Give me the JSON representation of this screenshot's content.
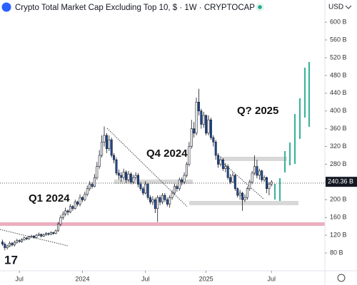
{
  "chart_data": {
    "type": "candlestick",
    "title": "Crypto Total Market Cap Excluding Top 10, $ · 1W · CRYPTOCAP",
    "currency": "USD",
    "annotations": [
      "Q1 2024",
      "Q4 2024",
      "Q? 2025"
    ],
    "up_color": "#ffffff",
    "down_color": "#1f4fa0",
    "xlim": [
      0,
      134
    ],
    "ylim": [
      40,
      650
    ],
    "xticks": [
      {
        "value": 8,
        "label": "Jul"
      },
      {
        "value": 34,
        "label": "2024"
      },
      {
        "value": 60,
        "label": "Jul"
      },
      {
        "value": 85,
        "label": "2025"
      },
      {
        "value": 112,
        "label": "Jul"
      }
    ],
    "yticks": [
      {
        "value": 80,
        "label": "80 B"
      },
      {
        "value": 120,
        "label": "120 B"
      },
      {
        "value": 160,
        "label": "160 B"
      },
      {
        "value": 200,
        "label": "200 B"
      },
      {
        "value": 240,
        "label": "240 B"
      },
      {
        "value": 280,
        "label": "280 B"
      },
      {
        "value": 320,
        "label": "320 B"
      },
      {
        "value": 360,
        "label": "360 B"
      },
      {
        "value": 400,
        "label": "400 B"
      },
      {
        "value": 440,
        "label": "440 B"
      },
      {
        "value": 480,
        "label": "480 B"
      },
      {
        "value": 520,
        "label": "520 B"
      },
      {
        "value": 560,
        "label": "560 B"
      },
      {
        "value": 600,
        "label": "600 B"
      }
    ],
    "last_price": {
      "value": 240.36,
      "label": "240.36 B"
    },
    "x": [
      1,
      2,
      3,
      4,
      5,
      6,
      7,
      8,
      9,
      10,
      11,
      12,
      13,
      14,
      15,
      16,
      17,
      18,
      19,
      20,
      21,
      22,
      23,
      24,
      25,
      26,
      27,
      28,
      29,
      30,
      31,
      32,
      33,
      34,
      35,
      36,
      37,
      38,
      39,
      40,
      41,
      42,
      43,
      44,
      45,
      46,
      47,
      48,
      49,
      50,
      51,
      52,
      53,
      54,
      55,
      56,
      57,
      58,
      59,
      60,
      61,
      62,
      63,
      64,
      65,
      66,
      67,
      68,
      69,
      70,
      71,
      72,
      73,
      74,
      75,
      76,
      77,
      78,
      79,
      80,
      81,
      82,
      83,
      84,
      85,
      86,
      87,
      88,
      89,
      90,
      91,
      92,
      93,
      94,
      95,
      96,
      97,
      98,
      99,
      100,
      101,
      102,
      103,
      104,
      105,
      106,
      107,
      108,
      109,
      110,
      111,
      112
    ],
    "open": [
      105,
      100,
      92,
      96,
      102,
      98,
      104,
      108,
      106,
      110,
      114,
      112,
      116,
      118,
      115,
      120,
      122,
      118,
      121,
      124,
      122,
      126,
      124,
      130,
      145,
      160,
      168,
      175,
      172,
      185,
      180,
      195,
      190,
      205,
      200,
      212,
      225,
      235,
      230,
      250,
      275,
      300,
      330,
      345,
      315,
      335,
      300,
      290,
      260,
      255,
      250,
      262,
      245,
      258,
      240,
      250,
      255,
      235,
      225,
      215,
      235,
      205,
      195,
      200,
      180,
      205,
      195,
      210,
      200,
      190,
      205,
      215,
      230,
      225,
      245,
      240,
      255,
      280,
      320,
      360,
      350,
      420,
      400,
      370,
      390,
      350,
      380,
      340,
      330,
      300,
      280,
      290,
      270,
      275,
      250,
      240,
      255,
      225,
      210,
      215,
      200,
      205,
      225,
      240,
      260,
      275,
      255,
      265,
      245,
      250,
      225,
      235
    ],
    "high": [
      110,
      104,
      99,
      106,
      105,
      108,
      112,
      111,
      113,
      117,
      116,
      119,
      121,
      120,
      123,
      126,
      124,
      124,
      127,
      126,
      129,
      128,
      133,
      150,
      165,
      174,
      182,
      178,
      190,
      188,
      200,
      198,
      212,
      208,
      218,
      232,
      242,
      240,
      258,
      285,
      312,
      345,
      365,
      350,
      345,
      340,
      305,
      295,
      268,
      262,
      270,
      266,
      265,
      262,
      256,
      262,
      260,
      240,
      230,
      242,
      238,
      210,
      208,
      205,
      210,
      210,
      215,
      215,
      205,
      210,
      222,
      236,
      235,
      250,
      250,
      262,
      285,
      330,
      380,
      375,
      430,
      450,
      405,
      398,
      392,
      390,
      385,
      345,
      335,
      305,
      298,
      294,
      282,
      280,
      258,
      262,
      258,
      228,
      222,
      218,
      212,
      230,
      245,
      265,
      300,
      290,
      270,
      268,
      255,
      252,
      240,
      244
    ],
    "low": [
      96,
      86,
      88,
      93,
      95,
      95,
      101,
      103,
      103,
      108,
      109,
      110,
      114,
      112,
      113,
      118,
      115,
      116,
      119,
      119,
      120,
      121,
      122,
      128,
      140,
      155,
      163,
      165,
      170,
      175,
      178,
      185,
      185,
      195,
      197,
      208,
      220,
      225,
      228,
      245,
      270,
      295,
      320,
      305,
      310,
      295,
      282,
      255,
      245,
      240,
      245,
      238,
      240,
      235,
      235,
      245,
      228,
      220,
      210,
      212,
      200,
      190,
      188,
      170,
      150,
      188,
      190,
      195,
      185,
      182,
      200,
      210,
      218,
      220,
      232,
      235,
      250,
      275,
      315,
      340,
      345,
      390,
      360,
      362,
      345,
      345,
      335,
      320,
      290,
      272,
      275,
      265,
      262,
      245,
      235,
      238,
      220,
      205,
      200,
      175,
      195,
      200,
      220,
      235,
      255,
      248,
      245,
      240,
      240,
      215,
      210,
      230
    ],
    "close": [
      100,
      92,
      96,
      102,
      98,
      104,
      108,
      106,
      110,
      114,
      112,
      116,
      118,
      115,
      120,
      122,
      118,
      121,
      124,
      122,
      126,
      124,
      130,
      145,
      160,
      168,
      175,
      172,
      185,
      180,
      195,
      190,
      205,
      200,
      212,
      225,
      235,
      230,
      250,
      275,
      300,
      330,
      345,
      315,
      335,
      300,
      290,
      260,
      255,
      250,
      262,
      245,
      258,
      240,
      250,
      255,
      235,
      225,
      215,
      235,
      205,
      195,
      200,
      180,
      205,
      195,
      210,
      200,
      190,
      205,
      215,
      230,
      225,
      245,
      240,
      255,
      280,
      320,
      360,
      350,
      420,
      400,
      370,
      390,
      350,
      380,
      340,
      330,
      300,
      280,
      290,
      270,
      275,
      250,
      240,
      255,
      225,
      210,
      215,
      200,
      205,
      225,
      240,
      260,
      275,
      255,
      265,
      245,
      250,
      225,
      235,
      240
    ]
  }
}
